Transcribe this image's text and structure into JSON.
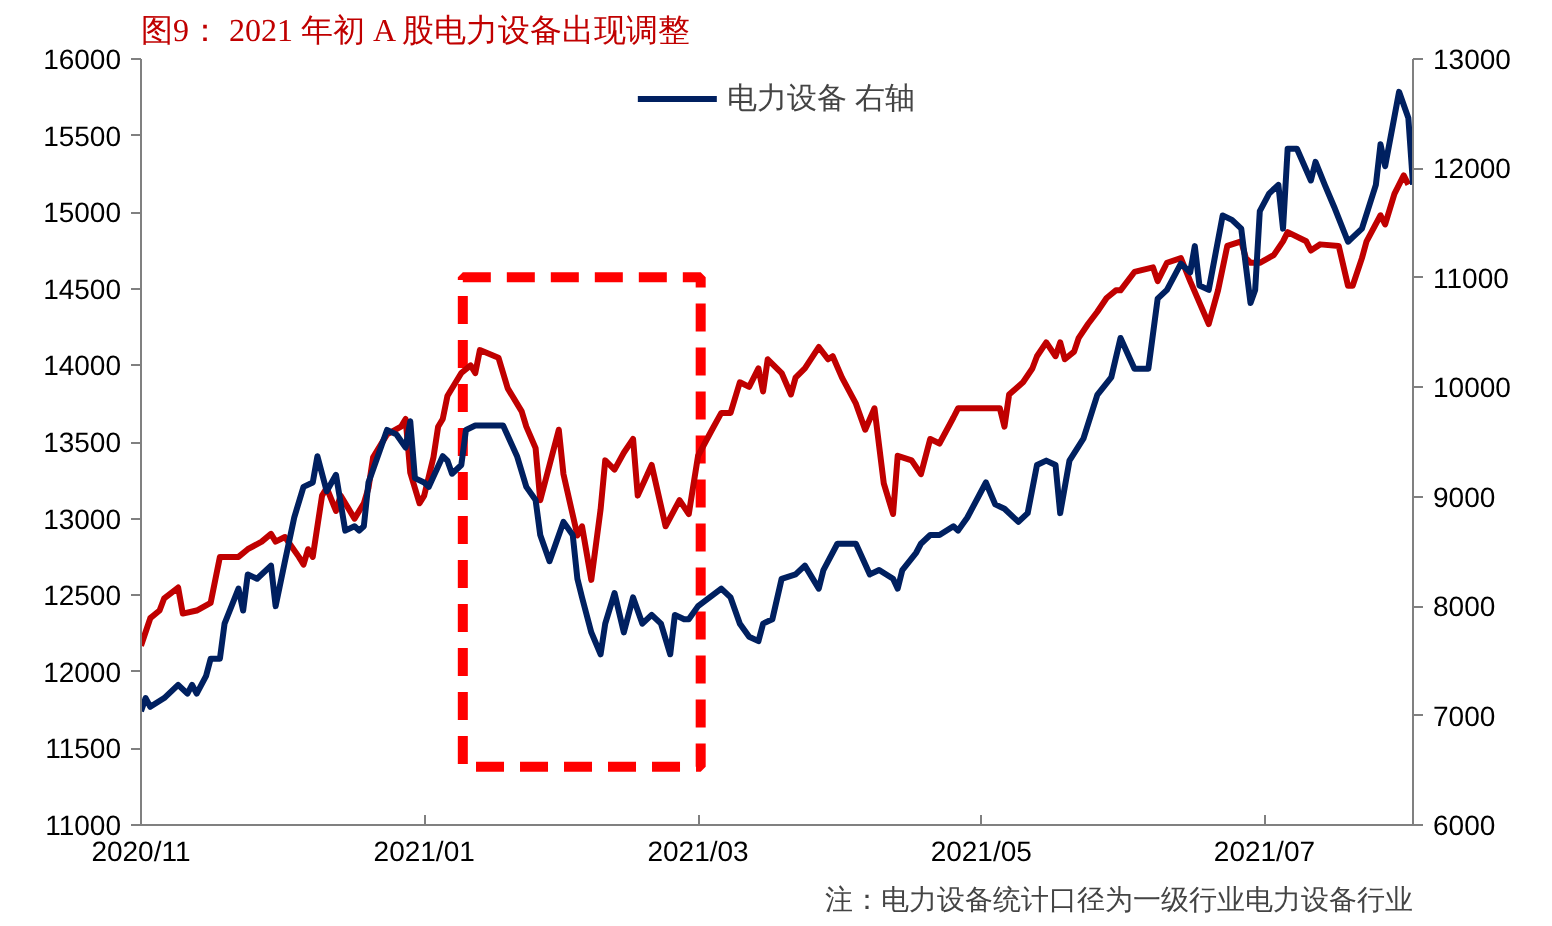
{
  "chart_data": {
    "type": "line",
    "title": "图9：  2021 年初 A 股电力设备出现调整",
    "legend": "top",
    "grid": false,
    "line_style": "solid",
    "marker": "none",
    "xlim": [
      "2020-11-01",
      "2021-08-02"
    ],
    "xticks": [
      {
        "value": "2020-11-01",
        "label": "2020/11"
      },
      {
        "value": "2021-01-01",
        "label": "2021/01"
      },
      {
        "value": "2021-03-01",
        "label": "2021/03"
      },
      {
        "value": "2021-05-01",
        "label": "2021/05"
      },
      {
        "value": "2021-07-01",
        "label": "2021/07"
      }
    ],
    "ylim": [
      11000,
      16000
    ],
    "yticks": [
      11000,
      11500,
      12000,
      12500,
      13000,
      13500,
      14000,
      14500,
      15000,
      15500,
      16000
    ],
    "y2lim": [
      6000,
      13000
    ],
    "y2ticks": [
      6000,
      7000,
      8000,
      9000,
      10000,
      11000,
      12000,
      13000
    ],
    "annotations": [
      "注：电力设备统计口径为一级行业电力设备行业"
    ],
    "series": [
      {
        "color": "#c00000",
        "x": [
          "2020-11-01",
          "2020-11-03",
          "2020-11-05",
          "2020-11-06",
          "2020-11-09",
          "2020-11-10",
          "2020-11-13",
          "2020-11-16",
          "2020-11-17",
          "2020-11-18",
          "2020-11-22",
          "2020-11-24",
          "2020-11-27",
          "2020-11-29",
          "2020-11-30",
          "2020-12-02",
          "2020-12-05",
          "2020-12-06",
          "2020-12-07",
          "2020-12-08",
          "2020-12-10",
          "2020-12-11",
          "2020-12-13",
          "2020-12-14",
          "2020-12-17",
          "2020-12-19",
          "2020-12-20",
          "2020-12-21",
          "2020-12-24",
          "2020-12-27",
          "2020-12-28",
          "2020-12-29",
          "2020-12-31",
          "2021-01-01",
          "2021-01-03",
          "2021-01-04",
          "2021-01-05",
          "2021-01-06",
          "2021-01-09",
          "2021-01-11",
          "2021-01-12",
          "2021-01-13",
          "2021-01-17",
          "2021-01-19",
          "2021-01-22",
          "2021-01-23",
          "2021-01-25",
          "2021-01-26",
          "2021-01-28",
          "2021-01-30",
          "2021-01-31",
          "2021-02-03",
          "2021-02-04",
          "2021-02-06",
          "2021-02-08",
          "2021-02-09",
          "2021-02-11",
          "2021-02-13",
          "2021-02-15",
          "2021-02-16",
          "2021-02-19",
          "2021-02-22",
          "2021-02-25",
          "2021-02-27",
          "2021-03-01",
          "2021-03-04",
          "2021-03-06",
          "2021-03-08",
          "2021-03-10",
          "2021-03-12",
          "2021-03-14",
          "2021-03-15",
          "2021-03-16",
          "2021-03-19",
          "2021-03-21",
          "2021-03-22",
          "2021-03-24",
          "2021-03-27",
          "2021-03-29",
          "2021-03-30",
          "2021-04-01",
          "2021-04-04",
          "2021-04-06",
          "2021-04-08",
          "2021-04-10",
          "2021-04-12",
          "2021-04-13",
          "2021-04-16",
          "2021-04-18",
          "2021-04-20",
          "2021-04-22",
          "2021-04-25",
          "2021-04-26",
          "2021-04-30",
          "2021-05-05",
          "2021-05-06",
          "2021-05-07",
          "2021-05-10",
          "2021-05-12",
          "2021-05-13",
          "2021-05-15",
          "2021-05-17",
          "2021-05-18",
          "2021-05-19",
          "2021-05-21",
          "2021-05-22",
          "2021-05-24",
          "2021-05-26",
          "2021-05-28",
          "2021-05-30",
          "2021-05-31",
          "2021-06-03",
          "2021-06-07",
          "2021-06-08",
          "2021-06-10",
          "2021-06-13",
          "2021-06-15",
          "2021-06-19",
          "2021-06-21",
          "2021-06-23",
          "2021-06-26",
          "2021-06-27",
          "2021-06-28",
          "2021-06-30",
          "2021-07-03",
          "2021-07-05",
          "2021-07-06",
          "2021-07-10",
          "2021-07-11",
          "2021-07-13",
          "2021-07-17",
          "2021-07-19",
          "2021-07-20",
          "2021-07-22",
          "2021-07-23",
          "2021-07-26",
          "2021-07-27",
          "2021-07-29",
          "2021-07-31",
          "2021-08-01"
        ],
        "values": [
          12170,
          12350,
          12400,
          12480,
          12550,
          12380,
          12400,
          12450,
          12600,
          12750,
          12750,
          12800,
          12850,
          12900,
          12850,
          12880,
          12750,
          12700,
          12800,
          12750,
          13150,
          13200,
          13050,
          13150,
          13000,
          13100,
          13200,
          13400,
          13550,
          13600,
          13650,
          13300,
          13100,
          13150,
          13400,
          13600,
          13650,
          13800,
          13950,
          14000,
          13950,
          14100,
          14050,
          13850,
          13700,
          13600,
          13460,
          13120,
          13350,
          13580,
          13290,
          12890,
          12950,
          12600,
          13060,
          13380,
          13320,
          13430,
          13520,
          13150,
          13350,
          12950,
          13120,
          13030,
          13410,
          13580,
          13690,
          13690,
          13890,
          13860,
          13980,
          13830,
          14040,
          13950,
          13810,
          13920,
          13980,
          14120,
          14040,
          14060,
          13920,
          13750,
          13580,
          13720,
          13230,
          13030,
          13410,
          13380,
          13290,
          13520,
          13490,
          13660,
          13720,
          13720,
          13720,
          13600,
          13810,
          13890,
          13980,
          14060,
          14150,
          14060,
          14150,
          14040,
          14090,
          14180,
          14270,
          14350,
          14440,
          14490,
          14490,
          14610,
          14640,
          14550,
          14670,
          14700,
          14550,
          14270,
          14490,
          14780,
          14810,
          14700,
          14670,
          14670,
          14720,
          14810,
          14870,
          14810,
          14750,
          14790,
          14780,
          14520,
          14520,
          14700,
          14810,
          14980,
          14920,
          15120,
          15240,
          15180
        ]
      },
      {
        "name": "电力设备 右轴",
        "color": "#002060",
        "axis": "y2",
        "x": [
          "2020-11-01",
          "2020-11-02",
          "2020-11-03",
          "2020-11-06",
          "2020-11-09",
          "2020-11-11",
          "2020-11-12",
          "2020-11-13",
          "2020-11-15",
          "2020-11-16",
          "2020-11-18",
          "2020-11-19",
          "2020-11-22",
          "2020-11-23",
          "2020-11-24",
          "2020-11-26",
          "2020-11-29",
          "2020-11-30",
          "2020-12-02",
          "2020-12-04",
          "2020-12-06",
          "2020-12-08",
          "2020-12-09",
          "2020-12-11",
          "2020-12-13",
          "2020-12-15",
          "2020-12-17",
          "2020-12-18",
          "2020-12-19",
          "2020-12-20",
          "2020-12-24",
          "2020-12-26",
          "2020-12-28",
          "2020-12-29",
          "2020-12-30",
          "2021-01-01",
          "2021-01-02",
          "2021-01-05",
          "2021-01-06",
          "2021-01-07",
          "2021-01-09",
          "2021-01-10",
          "2021-01-12",
          "2021-01-18",
          "2021-01-21",
          "2021-01-23",
          "2021-01-25",
          "2021-01-26",
          "2021-01-28",
          "2021-01-29",
          "2021-01-31",
          "2021-02-02",
          "2021-02-03",
          "2021-02-04",
          "2021-02-06",
          "2021-02-08",
          "2021-02-09",
          "2021-02-11",
          "2021-02-13",
          "2021-02-15",
          "2021-02-17",
          "2021-02-19",
          "2021-02-21",
          "2021-02-23",
          "2021-02-24",
          "2021-02-26",
          "2021-02-27",
          "2021-03-01",
          "2021-03-06",
          "2021-03-08",
          "2021-03-10",
          "2021-03-12",
          "2021-03-14",
          "2021-03-15",
          "2021-03-17",
          "2021-03-19",
          "2021-03-22",
          "2021-03-24",
          "2021-03-27",
          "2021-03-28",
          "2021-03-31",
          "2021-04-04",
          "2021-04-07",
          "2021-04-09",
          "2021-04-12",
          "2021-04-13",
          "2021-04-14",
          "2021-04-17",
          "2021-04-18",
          "2021-04-20",
          "2021-04-22",
          "2021-04-25",
          "2021-04-26",
          "2021-04-28",
          "2021-05-02",
          "2021-05-04",
          "2021-05-06",
          "2021-05-09",
          "2021-05-11",
          "2021-05-13",
          "2021-05-15",
          "2021-05-17",
          "2021-05-18",
          "2021-05-20",
          "2021-05-23",
          "2021-05-26",
          "2021-05-29",
          "2021-05-31",
          "2021-06-03",
          "2021-06-06",
          "2021-06-08",
          "2021-06-10",
          "2021-06-12",
          "2021-06-13",
          "2021-06-15",
          "2021-06-16",
          "2021-06-17",
          "2021-06-19",
          "2021-06-22",
          "2021-06-24",
          "2021-06-26",
          "2021-06-28",
          "2021-06-29",
          "2021-06-30",
          "2021-07-02",
          "2021-07-04",
          "2021-07-05",
          "2021-07-06",
          "2021-07-08",
          "2021-07-11",
          "2021-07-12",
          "2021-07-14",
          "2021-07-16",
          "2021-07-19",
          "2021-07-20",
          "2021-07-22",
          "2021-07-25",
          "2021-07-26",
          "2021-07-27",
          "2021-07-30",
          "2021-08-01",
          "2021-08-02"
        ],
        "values": [
          7040,
          7160,
          7080,
          7160,
          7280,
          7200,
          7280,
          7200,
          7360,
          7520,
          7520,
          7840,
          8160,
          7960,
          8290,
          8250,
          8370,
          8000,
          8410,
          8810,
          9090,
          9130,
          9370,
          9050,
          9200,
          8690,
          8730,
          8690,
          8730,
          9130,
          9610,
          9570,
          9450,
          9690,
          9170,
          9130,
          9090,
          9370,
          9330,
          9210,
          9290,
          9610,
          9650,
          9650,
          9370,
          9090,
          8970,
          8650,
          8410,
          8530,
          8770,
          8650,
          8250,
          8080,
          7760,
          7560,
          7840,
          8120,
          7760,
          8080,
          7840,
          7920,
          7840,
          7560,
          7920,
          7880,
          7880,
          8000,
          8160,
          8080,
          7840,
          7720,
          7680,
          7840,
          7880,
          8250,
          8290,
          8370,
          8160,
          8330,
          8570,
          8570,
          8290,
          8330,
          8250,
          8160,
          8330,
          8490,
          8570,
          8650,
          8650,
          8730,
          8690,
          8810,
          9130,
          8930,
          8890,
          8770,
          8850,
          9290,
          9330,
          9290,
          8850,
          9330,
          9530,
          9930,
          10090,
          10450,
          10170,
          10170,
          10810,
          10890,
          11050,
          11130,
          11050,
          11290,
          10930,
          10890,
          11570,
          11530,
          11450,
          10770,
          10890,
          11610,
          11770,
          11850,
          11450,
          12180,
          12180,
          11890,
          12060,
          11850,
          11650,
          11330,
          11370,
          11450,
          11850,
          12220,
          12020,
          12700,
          12460,
          11850
        ]
      }
    ]
  }
}
